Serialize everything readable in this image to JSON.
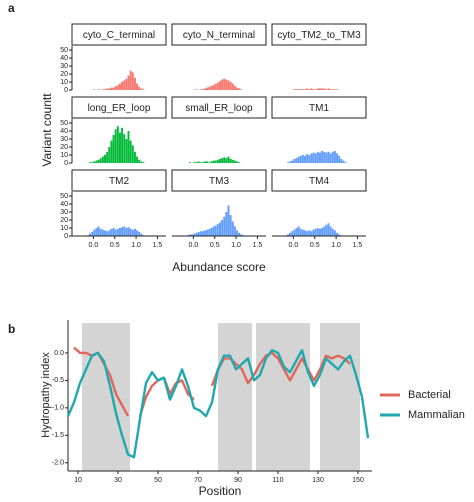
{
  "chart_data": [
    {
      "type": "histogram",
      "panel_label": "a",
      "xlabel": "Abundance score",
      "ylabel": "Variant countt",
      "xlim": [
        -0.5,
        1.7
      ],
      "ylim": [
        0,
        55
      ],
      "xticks": [
        {
          "value": 0,
          "label": "0.0"
        },
        0.5,
        {
          "value": 1,
          "label": "1.0"
        },
        1.5
      ],
      "yticks": [
        0,
        10,
        20,
        30,
        40,
        50
      ],
      "bins": [
        -0.3,
        -0.25,
        -0.2,
        -0.15,
        -0.1,
        -0.05,
        0,
        0.05,
        0.1,
        0.15,
        0.2,
        0.25,
        0.3,
        0.35,
        0.4,
        0.45,
        0.5,
        0.55,
        0.6,
        0.65,
        0.7,
        0.75,
        0.8,
        0.85,
        0.9,
        0.95,
        1,
        1.05,
        1.1,
        1.15,
        1.2,
        1.25,
        1.3
      ],
      "panels": [
        {
          "title": "cyto_C_terminal",
          "color": "#F8766D",
          "counts": [
            0,
            0,
            0,
            0,
            0,
            0,
            1,
            0,
            1,
            0,
            1,
            1,
            2,
            2,
            3,
            3,
            5,
            6,
            8,
            10,
            12,
            14,
            18,
            24,
            22,
            15,
            8,
            4,
            2,
            1,
            0,
            0
          ]
        },
        {
          "title": "cyto_N_terminal",
          "color": "#F8766D",
          "counts": [
            0,
            0,
            0,
            0,
            0,
            0,
            0,
            1,
            0,
            1,
            1,
            2,
            3,
            4,
            5,
            6,
            8,
            9,
            11,
            13,
            14,
            13,
            12,
            10,
            8,
            5,
            3,
            2,
            1,
            0,
            0,
            0
          ]
        },
        {
          "title": "cyto_TM2_to_TM3",
          "color": "#F8766D",
          "counts": [
            0,
            0,
            0,
            0,
            0,
            0,
            1,
            1,
            1,
            1,
            1,
            1,
            2,
            1,
            2,
            1,
            1,
            2,
            2,
            2,
            2,
            1,
            2,
            1,
            1,
            1,
            1,
            0,
            0,
            0,
            0,
            0
          ]
        },
        {
          "title": "long_ER_loop",
          "color": "#00BA38",
          "counts": [
            0,
            0,
            0,
            0,
            1,
            1,
            2,
            3,
            4,
            6,
            8,
            10,
            14,
            20,
            28,
            35,
            42,
            46,
            38,
            44,
            36,
            30,
            40,
            28,
            22,
            14,
            8,
            4,
            2,
            1,
            0,
            0
          ]
        },
        {
          "title": "small_ER_loop",
          "color": "#00BA38",
          "counts": [
            0,
            0,
            0,
            0,
            1,
            0,
            1,
            1,
            2,
            1,
            1,
            2,
            2,
            1,
            2,
            3,
            3,
            4,
            5,
            6,
            7,
            6,
            8,
            5,
            4,
            3,
            2,
            1,
            0,
            0,
            0,
            0
          ]
        },
        {
          "title": "TM1",
          "color": "#619CFF",
          "counts": [
            0,
            0,
            0,
            1,
            2,
            3,
            5,
            6,
            8,
            9,
            10,
            9,
            11,
            10,
            12,
            13,
            12,
            14,
            13,
            15,
            14,
            13,
            14,
            12,
            14,
            15,
            12,
            9,
            5,
            3,
            1,
            0
          ]
        },
        {
          "title": "TM2",
          "color": "#619CFF",
          "counts": [
            0,
            0,
            0,
            1,
            3,
            5,
            8,
            10,
            12,
            9,
            8,
            7,
            6,
            7,
            9,
            10,
            8,
            9,
            10,
            11,
            12,
            10,
            11,
            9,
            8,
            9,
            7,
            5,
            3,
            1,
            0,
            0
          ]
        },
        {
          "title": "TM3",
          "color": "#619CFF",
          "counts": [
            0,
            0,
            0,
            1,
            2,
            2,
            3,
            4,
            5,
            6,
            6,
            7,
            8,
            9,
            10,
            12,
            13,
            15,
            17,
            20,
            24,
            30,
            38,
            26,
            18,
            12,
            7,
            4,
            2,
            1,
            0,
            0
          ]
        },
        {
          "title": "TM4",
          "color": "#619CFF",
          "counts": [
            0,
            0,
            0,
            2,
            4,
            6,
            8,
            10,
            12,
            9,
            8,
            7,
            6,
            7,
            6,
            8,
            9,
            10,
            9,
            10,
            12,
            14,
            16,
            12,
            9,
            7,
            4,
            2,
            1,
            0,
            0,
            0
          ]
        }
      ]
    },
    {
      "type": "line",
      "panel_label": "b",
      "xlabel": "Position",
      "ylabel": "Hydropathy index",
      "xlim": [
        5,
        157
      ],
      "ylim": [
        -2.15,
        0.6
      ],
      "xticks": [
        10,
        30,
        50,
        70,
        90,
        110,
        130,
        150
      ],
      "yticks": [
        {
          "value": 0,
          "label": "0.0"
        },
        -0.5,
        {
          "value": -1,
          "label": "-1.0"
        },
        -1.5,
        {
          "value": -2,
          "label": "-2.0"
        }
      ],
      "shaded_regions": [
        [
          12,
          36
        ],
        [
          80,
          97
        ],
        [
          99,
          126
        ],
        [
          131,
          151
        ]
      ],
      "shade_color": "#d4d4d4",
      "x": [
        5,
        8,
        11,
        14,
        17,
        20,
        23,
        26,
        29,
        32,
        35,
        38,
        41,
        44,
        47,
        50,
        53,
        56,
        59,
        62,
        65,
        68,
        71,
        74,
        77,
        80,
        83,
        86,
        89,
        92,
        95,
        98,
        101,
        104,
        107,
        110,
        113,
        116,
        119,
        122,
        125,
        128,
        131,
        134,
        137,
        140,
        143,
        146,
        149,
        152,
        155
      ],
      "series": [
        {
          "name": "Bacterial",
          "color": "#E0675C",
          "values": [
            null,
            0.1,
            0,
            0,
            -0.05,
            0,
            -0.2,
            -0.4,
            -0.75,
            -0.95,
            -1.15,
            null,
            -1.15,
            -0.8,
            -0.6,
            -0.5,
            -0.45,
            -0.75,
            -0.55,
            -0.5,
            -0.75,
            -0.85,
            null,
            null,
            -0.6,
            -0.3,
            -0.1,
            -0.1,
            -0.2,
            -0.3,
            -0.55,
            -0.4,
            -0.2,
            -0.05,
            0,
            -0.1,
            -0.3,
            -0.5,
            -0.3,
            -0.1,
            -0.3,
            -0.5,
            -0.3,
            -0.05,
            -0.1,
            -0.05,
            -0.1,
            -0.2,
            null,
            null,
            null
          ]
        },
        {
          "name": "Mammalian",
          "color": "#1FA9AE",
          "values": [
            -1.15,
            -0.9,
            -0.55,
            -0.3,
            -0.05,
            0,
            -0.15,
            -0.6,
            -1.1,
            -1.5,
            -1.85,
            -1.9,
            -1.2,
            -0.55,
            -0.35,
            -0.5,
            -0.45,
            -0.85,
            -0.6,
            -0.3,
            -0.6,
            -1,
            -1.05,
            -1.15,
            -0.9,
            -0.3,
            -0.05,
            -0.05,
            -0.3,
            -0.2,
            -0.1,
            -0.5,
            -0.4,
            -0.1,
            0.05,
            0,
            -0.25,
            -0.35,
            -0.15,
            0.05,
            -0.35,
            -0.6,
            -0.4,
            -0.1,
            -0.2,
            -0.3,
            -0.15,
            -0.05,
            -0.4,
            -0.8,
            -1.55
          ]
        }
      ]
    }
  ]
}
